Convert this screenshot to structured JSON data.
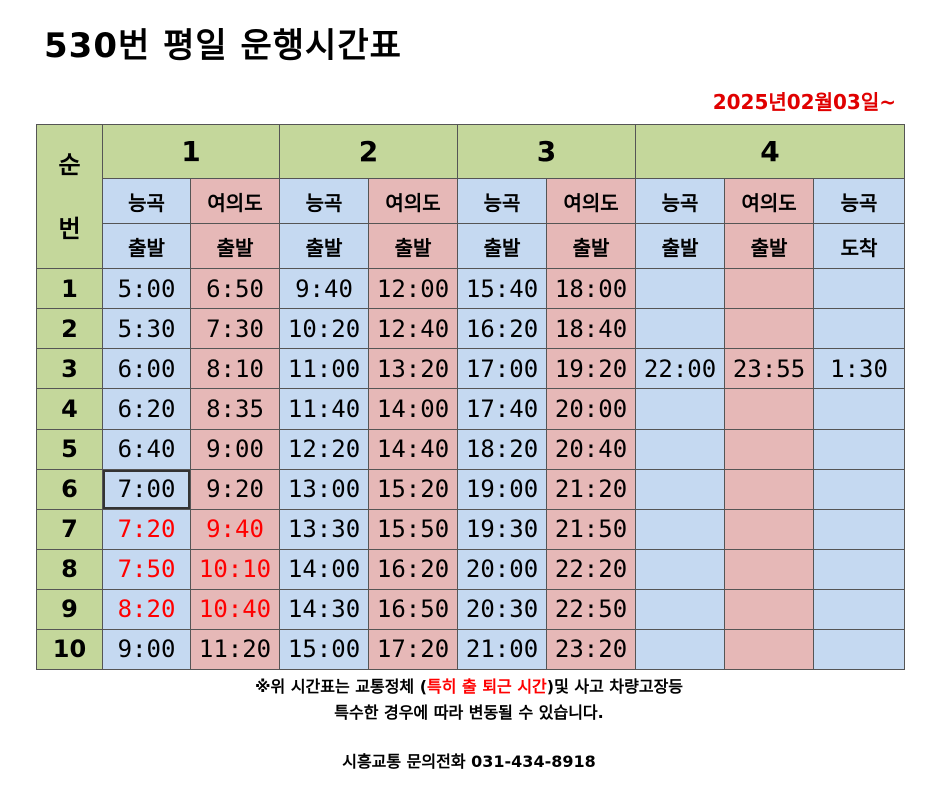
{
  "title": "530번 평일 운행시간표",
  "effective_date": "2025년02월03일~",
  "table": {
    "seq_header": [
      "순",
      "번"
    ],
    "groups": [
      "1",
      "2",
      "3",
      "4"
    ],
    "subheaders_top": [
      "능곡",
      "여의도",
      "능곡",
      "여의도",
      "능곡",
      "여의도",
      "능곡",
      "여의도",
      "능곡"
    ],
    "subheaders_bottom": [
      "출발",
      "출발",
      "출발",
      "출발",
      "출발",
      "출발",
      "출발",
      "출발",
      "도착"
    ],
    "rows": [
      {
        "seq": "1",
        "times": [
          "5:00",
          "6:50",
          "9:40",
          "12:00",
          "15:40",
          "18:00",
          "",
          "",
          ""
        ]
      },
      {
        "seq": "2",
        "times": [
          "5:30",
          "7:30",
          "10:20",
          "12:40",
          "16:20",
          "18:40",
          "",
          "",
          ""
        ]
      },
      {
        "seq": "3",
        "times": [
          "6:00",
          "8:10",
          "11:00",
          "13:20",
          "17:00",
          "19:20",
          "22:00",
          "23:55",
          "1:30"
        ]
      },
      {
        "seq": "4",
        "times": [
          "6:20",
          "8:35",
          "11:40",
          "14:00",
          "17:40",
          "20:00",
          "",
          "",
          ""
        ]
      },
      {
        "seq": "5",
        "times": [
          "6:40",
          "9:00",
          "12:20",
          "14:40",
          "18:20",
          "20:40",
          "",
          "",
          ""
        ]
      },
      {
        "seq": "6",
        "times": [
          "7:00",
          "9:20",
          "13:00",
          "15:20",
          "19:00",
          "21:20",
          "",
          "",
          ""
        ]
      },
      {
        "seq": "7",
        "times": [
          "7:20",
          "9:40",
          "13:30",
          "15:50",
          "19:30",
          "21:50",
          "",
          "",
          ""
        ]
      },
      {
        "seq": "8",
        "times": [
          "7:50",
          "10:10",
          "14:00",
          "16:20",
          "20:00",
          "22:20",
          "",
          "",
          ""
        ]
      },
      {
        "seq": "9",
        "times": [
          "8:20",
          "10:40",
          "14:30",
          "16:50",
          "20:30",
          "22:50",
          "",
          "",
          ""
        ]
      },
      {
        "seq": "10",
        "times": [
          "9:00",
          "11:20",
          "15:00",
          "17:20",
          "21:00",
          "23:20",
          "",
          "",
          ""
        ]
      }
    ],
    "highlight_color": "#ff0000"
  },
  "notes": {
    "line1_prefix": "※위 시간표는 교통정체 (",
    "line1_highlight": "특히 출 퇴근 시간",
    "line1_suffix": ")및 사고 차량고장등",
    "line2": "특수한 경우에 따라 변동될 수 있습니다."
  },
  "contact": "시흥교통 문의전화 031-434-8918"
}
